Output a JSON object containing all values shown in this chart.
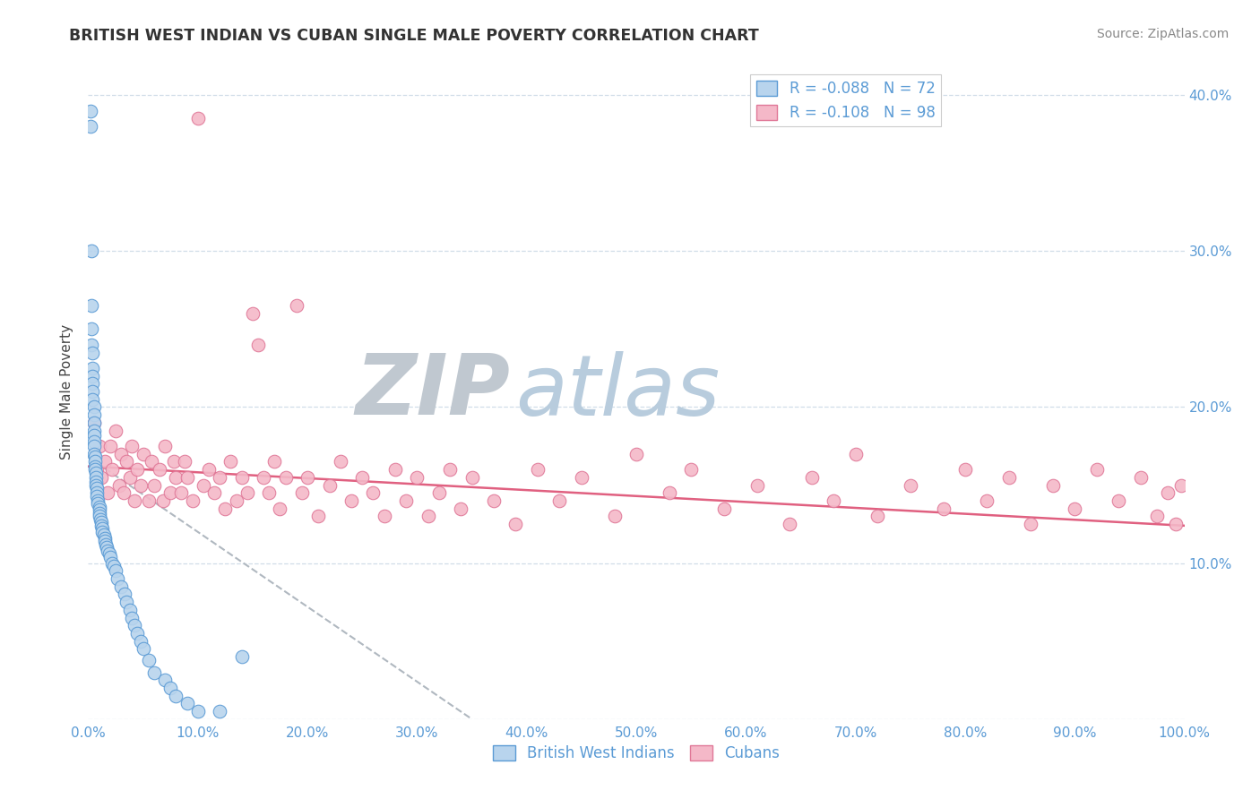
{
  "title": "BRITISH WEST INDIAN VS CUBAN SINGLE MALE POVERTY CORRELATION CHART",
  "source": "Source: ZipAtlas.com",
  "ylabel": "Single Male Poverty",
  "xlim": [
    0,
    1.0
  ],
  "ylim": [
    0,
    0.42
  ],
  "yticks": [
    0.0,
    0.1,
    0.2,
    0.3,
    0.4
  ],
  "r_bwi": -0.088,
  "n_bwi": 72,
  "r_cuban": -0.108,
  "n_cuban": 98,
  "blue_color": "#b8d4ed",
  "blue_edge_color": "#5b9bd5",
  "pink_color": "#f4b8c8",
  "pink_edge_color": "#e07898",
  "trend_gray_color": "#b0b8c0",
  "trend_pink_color": "#e06080",
  "watermark_zip_color": "#c0c8d0",
  "watermark_atlas_color": "#b8ccdd",
  "grid_color": "#d0dde8",
  "tick_color": "#5b9bd5",
  "bwi_x": [
    0.002,
    0.002,
    0.003,
    0.003,
    0.003,
    0.003,
    0.004,
    0.004,
    0.004,
    0.004,
    0.004,
    0.004,
    0.005,
    0.005,
    0.005,
    0.005,
    0.005,
    0.005,
    0.005,
    0.005,
    0.006,
    0.006,
    0.006,
    0.006,
    0.007,
    0.007,
    0.007,
    0.007,
    0.008,
    0.008,
    0.008,
    0.009,
    0.009,
    0.01,
    0.01,
    0.01,
    0.01,
    0.011,
    0.012,
    0.012,
    0.013,
    0.013,
    0.014,
    0.015,
    0.015,
    0.016,
    0.017,
    0.018,
    0.019,
    0.02,
    0.022,
    0.023,
    0.025,
    0.027,
    0.03,
    0.033,
    0.035,
    0.038,
    0.04,
    0.042,
    0.045,
    0.048,
    0.05,
    0.055,
    0.06,
    0.07,
    0.075,
    0.08,
    0.09,
    0.1,
    0.12,
    0.14
  ],
  "bwi_y": [
    0.39,
    0.38,
    0.3,
    0.265,
    0.25,
    0.24,
    0.235,
    0.225,
    0.22,
    0.215,
    0.21,
    0.205,
    0.2,
    0.195,
    0.19,
    0.185,
    0.182,
    0.178,
    0.175,
    0.17,
    0.168,
    0.165,
    0.162,
    0.16,
    0.158,
    0.155,
    0.152,
    0.15,
    0.148,
    0.145,
    0.143,
    0.14,
    0.138,
    0.136,
    0.134,
    0.132,
    0.13,
    0.128,
    0.126,
    0.124,
    0.122,
    0.12,
    0.118,
    0.116,
    0.114,
    0.112,
    0.11,
    0.108,
    0.106,
    0.104,
    0.1,
    0.098,
    0.095,
    0.09,
    0.085,
    0.08,
    0.075,
    0.07,
    0.065,
    0.06,
    0.055,
    0.05,
    0.045,
    0.038,
    0.03,
    0.025,
    0.02,
    0.015,
    0.01,
    0.005,
    0.005,
    0.04
  ],
  "cuban_x": [
    0.005,
    0.008,
    0.01,
    0.012,
    0.015,
    0.018,
    0.02,
    0.022,
    0.025,
    0.028,
    0.03,
    0.032,
    0.035,
    0.038,
    0.04,
    0.042,
    0.045,
    0.048,
    0.05,
    0.055,
    0.058,
    0.06,
    0.065,
    0.068,
    0.07,
    0.075,
    0.078,
    0.08,
    0.085,
    0.088,
    0.09,
    0.095,
    0.1,
    0.105,
    0.11,
    0.115,
    0.12,
    0.125,
    0.13,
    0.135,
    0.14,
    0.145,
    0.15,
    0.155,
    0.16,
    0.165,
    0.17,
    0.175,
    0.18,
    0.19,
    0.195,
    0.2,
    0.21,
    0.22,
    0.23,
    0.24,
    0.25,
    0.26,
    0.27,
    0.28,
    0.29,
    0.3,
    0.31,
    0.32,
    0.33,
    0.34,
    0.35,
    0.37,
    0.39,
    0.41,
    0.43,
    0.45,
    0.48,
    0.5,
    0.53,
    0.55,
    0.58,
    0.61,
    0.64,
    0.66,
    0.68,
    0.7,
    0.72,
    0.75,
    0.78,
    0.8,
    0.82,
    0.84,
    0.86,
    0.88,
    0.9,
    0.92,
    0.94,
    0.96,
    0.975,
    0.985,
    0.992,
    0.997
  ],
  "cuban_y": [
    0.19,
    0.16,
    0.175,
    0.155,
    0.165,
    0.145,
    0.175,
    0.16,
    0.185,
    0.15,
    0.17,
    0.145,
    0.165,
    0.155,
    0.175,
    0.14,
    0.16,
    0.15,
    0.17,
    0.14,
    0.165,
    0.15,
    0.16,
    0.14,
    0.175,
    0.145,
    0.165,
    0.155,
    0.145,
    0.165,
    0.155,
    0.14,
    0.385,
    0.15,
    0.16,
    0.145,
    0.155,
    0.135,
    0.165,
    0.14,
    0.155,
    0.145,
    0.26,
    0.24,
    0.155,
    0.145,
    0.165,
    0.135,
    0.155,
    0.265,
    0.145,
    0.155,
    0.13,
    0.15,
    0.165,
    0.14,
    0.155,
    0.145,
    0.13,
    0.16,
    0.14,
    0.155,
    0.13,
    0.145,
    0.16,
    0.135,
    0.155,
    0.14,
    0.125,
    0.16,
    0.14,
    0.155,
    0.13,
    0.17,
    0.145,
    0.16,
    0.135,
    0.15,
    0.125,
    0.155,
    0.14,
    0.17,
    0.13,
    0.15,
    0.135,
    0.16,
    0.14,
    0.155,
    0.125,
    0.15,
    0.135,
    0.16,
    0.14,
    0.155,
    0.13,
    0.145,
    0.125,
    0.15
  ]
}
